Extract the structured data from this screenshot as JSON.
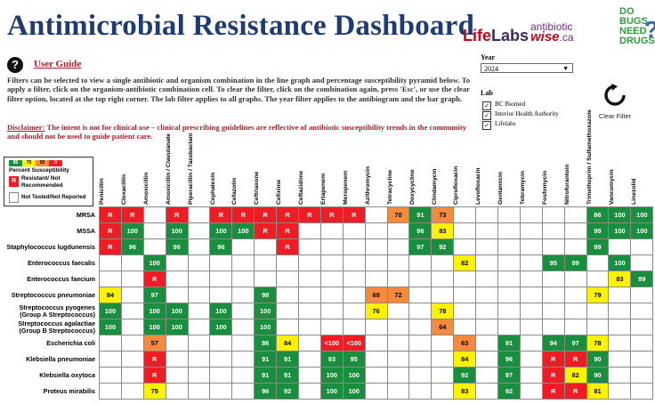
{
  "header": {
    "title": "Antimicrobial Resistance Dashboard",
    "logo_lifelabs_a": "Life",
    "logo_lifelabs_b": "Labs",
    "logo_abwise_1": "antibiotic",
    "logo_abwise_2": "wise",
    "logo_abwise_3": ".ca",
    "logo_dobugs": [
      "DO",
      "BUGS",
      "NEED",
      "DRUGS"
    ],
    "logo_dobugs_q": "?"
  },
  "help": {
    "icon_glyph": "?",
    "user_guide_label": "User Guide",
    "instructions": "Filters can be selected to view a single antibiotic and organism combination in the line graph and percentage susceptibility pyramid below. To apply a filter, click on the organism-antibiotic combination cell. To clear the filter, click on the combination again, press 'Esc', or use the clear filter option, located at the top right corner. The lab filter applies to all graphs. The year filter applies to the antibiogram and the bar graph.",
    "disclaimer_label": "Disclaimer:",
    "disclaimer_text": " The intent is not for clinical use – clinical prescribing guidelines are reflective of antibiotic susceptibility trends in the community and should not be used to guide patient care."
  },
  "filters": {
    "year_label": "Year",
    "year_value": "2024",
    "lab_label": "Lab",
    "labs": [
      {
        "label": "BC Biomed",
        "checked": true
      },
      {
        "label": "Interior Health Authority",
        "checked": true
      },
      {
        "label": "Lifelabs",
        "checked": true
      }
    ],
    "clear_filter_label": "Clear Filter"
  },
  "legend": {
    "scale": [
      "85",
      "75",
      "55",
      "0"
    ],
    "susceptibility_label": "Percent Susceptibility",
    "resistant_label": "Resistant/ Not Recommended",
    "resistant_glyph": "R",
    "not_tested_label": "Not Tested/Not Reported",
    "colors": {
      "green": "#1a8e3f",
      "yellow": "#fff200",
      "orange": "#f58a3c",
      "red": "#ee1c25"
    }
  },
  "antibiotics": [
    "Penicillin",
    "Cloxacillin",
    "Amoxicillin",
    "Amoxicillin / Clavulanate",
    "Piperacillin / Tazobactam",
    "Cephalexin",
    "Cefazolin",
    "Ceftriaxone",
    "Cefixime",
    "Ceftazidime",
    "Ertapenem",
    "Meropenem",
    "Azithromycin",
    "Tetracycline",
    "Doxycycline",
    "Clindamycin",
    "Ciprofloxacin",
    "Levofloxacin",
    "Gentamicin",
    "Tobramycin",
    "Fosfomycin",
    "Nitrofurantoin",
    "Trimethoprim / Sulfamethoxazole",
    "Vancomycin",
    "Linezolid"
  ],
  "rows": [
    {
      "organism": "MRSA",
      "cells": [
        "R",
        "R",
        "",
        "R",
        "",
        "R",
        "R",
        "R",
        "R",
        "R",
        "R",
        "R",
        "",
        "70",
        "91",
        "73",
        "",
        "",
        "",
        "",
        "",
        "",
        "86",
        "100",
        "100"
      ]
    },
    {
      "organism": "MSSA",
      "cells": [
        "R",
        "100",
        "",
        "100",
        "",
        "100",
        "100",
        "R",
        "R",
        "",
        "",
        "",
        "",
        "",
        "96",
        "83",
        "",
        "",
        "",
        "",
        "",
        "",
        "99",
        "100",
        "100"
      ]
    },
    {
      "organism": "Staphylococcus lugdunensis",
      "cells": [
        "R",
        "96",
        "",
        "96",
        "",
        "96",
        "",
        "",
        "R",
        "",
        "",
        "",
        "",
        "",
        "97",
        "92",
        "",
        "",
        "",
        "",
        "",
        "",
        "99",
        "",
        ""
      ]
    },
    {
      "organism": "Enterococcus faecalis",
      "cells": [
        "",
        "",
        "100",
        "",
        "",
        "",
        "",
        "",
        "",
        "",
        "",
        "",
        "",
        "",
        "",
        "",
        "82",
        "",
        "",
        "",
        "95",
        "99",
        "",
        "100",
        ""
      ]
    },
    {
      "organism": "Enterococcus faecium",
      "cells": [
        "",
        "",
        "R",
        "",
        "",
        "",
        "",
        "",
        "",
        "",
        "",
        "",
        "",
        "",
        "",
        "",
        "",
        "",
        "",
        "",
        "",
        "",
        "",
        "83",
        "99"
      ]
    },
    {
      "organism": "Streptococcus pneumoniae",
      "cells": [
        "84",
        "",
        "97",
        "",
        "",
        "",
        "",
        "98",
        "",
        "",
        "",
        "",
        "69",
        "72",
        "",
        "",
        "",
        "",
        "",
        "",
        "",
        "",
        "79",
        "",
        ""
      ]
    },
    {
      "organism": "Streptococcus pyogenes (Group A Streptococcus)",
      "cells": [
        "100",
        "",
        "100",
        "100",
        "",
        "100",
        "",
        "100",
        "",
        "",
        "",
        "",
        "76",
        "",
        "",
        "78",
        "",
        "",
        "",
        "",
        "",
        "",
        "",
        "",
        ""
      ]
    },
    {
      "organism": "Streptococcus agalactiae (Group B Streptococcus)",
      "cells": [
        "100",
        "",
        "100",
        "100",
        "",
        "100",
        "",
        "100",
        "",
        "",
        "",
        "",
        "",
        "",
        "",
        "64",
        "",
        "",
        "",
        "",
        "",
        "",
        "",
        "",
        ""
      ]
    },
    {
      "organism": "Escherichia coli",
      "cells": [
        "",
        "",
        "57",
        "",
        "",
        "",
        "",
        "86",
        "84",
        "",
        "<100",
        "<100",
        "",
        "",
        "",
        "",
        "63",
        "",
        "91",
        "",
        "94",
        "97",
        "78",
        "",
        ""
      ]
    },
    {
      "organism": "Klebsiella pneumoniae",
      "cells": [
        "",
        "",
        "R",
        "",
        "",
        "",
        "",
        "91",
        "91",
        "",
        "93",
        "95",
        "",
        "",
        "",
        "",
        "84",
        "",
        "96",
        "",
        "R",
        "R",
        "90",
        "",
        ""
      ]
    },
    {
      "organism": "Klebsiella oxytoca",
      "cells": [
        "",
        "",
        "R",
        "",
        "",
        "",
        "",
        "91",
        "91",
        "",
        "100",
        "100",
        "",
        "",
        "",
        "",
        "92",
        "",
        "97",
        "",
        "R",
        "82",
        "90",
        "",
        ""
      ]
    },
    {
      "organism": "Proteus mirabilis",
      "cells": [
        "",
        "",
        "75",
        "",
        "",
        "",
        "",
        "96",
        "92",
        "",
        "100",
        "100",
        "",
        "",
        "",
        "",
        "83",
        "",
        "92",
        "",
        "R",
        "R",
        "81",
        "",
        ""
      ]
    }
  ]
}
